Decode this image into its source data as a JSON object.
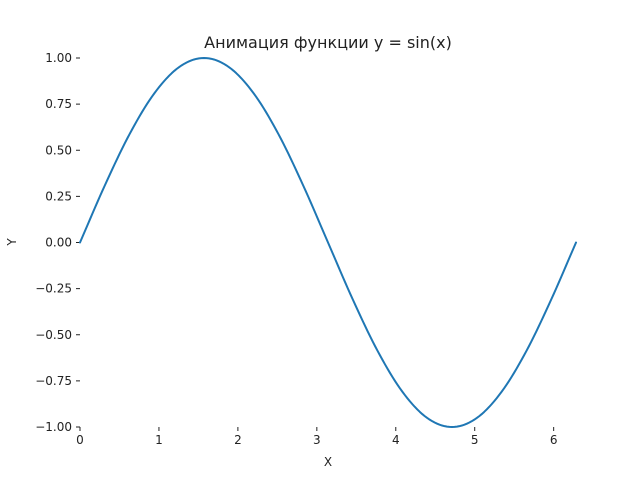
{
  "chart_data": {
    "type": "line",
    "title": "Анимация функции y = sin(x)",
    "xlabel": "X",
    "ylabel": "Y",
    "xlim": [
      0,
      6.283
    ],
    "ylim": [
      -1.0,
      1.0
    ],
    "grid": false,
    "x_ticks": [
      0,
      1,
      2,
      3,
      4,
      5,
      6
    ],
    "x_tick_labels": [
      "0",
      "1",
      "2",
      "3",
      "4",
      "5",
      "6"
    ],
    "y_ticks": [
      1.0,
      0.75,
      0.5,
      0.25,
      0.0,
      -0.25,
      -0.5,
      -0.75,
      -1.0
    ],
    "y_tick_labels": [
      "1.00",
      "0.75",
      "0.50",
      "0.25",
      "0.00",
      "−0.25",
      "−0.50",
      "−0.75",
      "−1.00"
    ],
    "series": [
      {
        "color": "#1f77b4",
        "x": [
          0.0,
          0.3142,
          0.6283,
          0.9425,
          1.2566,
          1.5708,
          1.885,
          2.1991,
          2.5133,
          2.8274,
          3.1416,
          3.4558,
          3.7699,
          4.0841,
          4.3982,
          4.7124,
          5.0265,
          5.3407,
          5.6549,
          5.969,
          6.2832
        ],
        "y": [
          0.0,
          0.309,
          0.5878,
          0.809,
          0.9511,
          1.0,
          0.9511,
          0.809,
          0.5878,
          0.309,
          0.0,
          -0.309,
          -0.5878,
          -0.809,
          -0.9511,
          -1.0,
          -0.9511,
          -0.809,
          -0.5878,
          -0.309,
          0.0
        ]
      }
    ]
  }
}
